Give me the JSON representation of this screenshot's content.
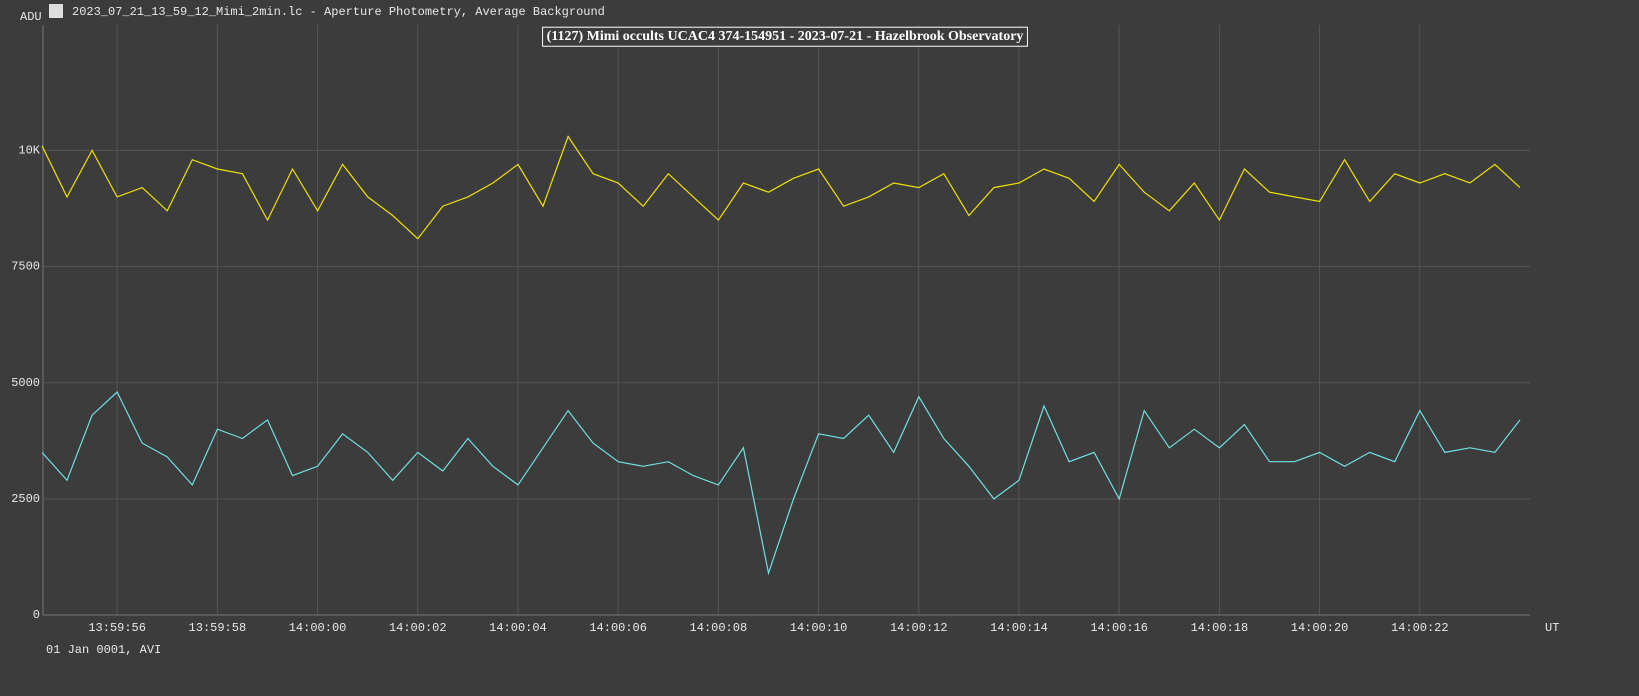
{
  "window_title": "2023_07_21_13_59_12_Mimi_2min.lc - Aperture Photometry, Average Background",
  "chart_data": {
    "type": "line",
    "title": "(1127) Mimi occults UCAC4 374-154951 - 2023-07-21 - Hazelbrook Observatory",
    "y_label": "ADU",
    "x_label": "UT",
    "footer": "01 Jan 0001, AVI",
    "grid": true,
    "xlim": [
      50394.52,
      50424.2
    ],
    "xticks": [
      {
        "value": 50396,
        "label": "13:59:56"
      },
      {
        "value": 50398,
        "label": "13:59:58"
      },
      {
        "value": 50400,
        "label": "14:00:00"
      },
      {
        "value": 50402,
        "label": "14:00:02"
      },
      {
        "value": 50404,
        "label": "14:00:04"
      },
      {
        "value": 50406,
        "label": "14:00:06"
      },
      {
        "value": 50408,
        "label": "14:00:08"
      },
      {
        "value": 50410,
        "label": "14:00:10"
      },
      {
        "value": 50412,
        "label": "14:00:12"
      },
      {
        "value": 50414,
        "label": "14:00:14"
      },
      {
        "value": 50416,
        "label": "14:00:16"
      },
      {
        "value": 50418,
        "label": "14:00:18"
      },
      {
        "value": 50420,
        "label": "14:00:20"
      },
      {
        "value": 50422,
        "label": "14:00:22"
      }
    ],
    "ylim": [
      0,
      12700
    ],
    "yticks": [
      0,
      2500,
      5000,
      7500,
      {
        "value": 10000,
        "label": "10K"
      }
    ],
    "x": [
      50394.5,
      50395,
      50395.5,
      50396,
      50396.5,
      50397,
      50397.5,
      50398,
      50398.5,
      50399,
      50399.5,
      50400,
      50400.5,
      50401,
      50401.5,
      50402,
      50402.5,
      50403,
      50403.5,
      50404,
      50404.5,
      50405,
      50405.5,
      50406,
      50406.5,
      50407,
      50407.5,
      50408,
      50408.5,
      50409,
      50409.5,
      50410,
      50410.5,
      50411,
      50411.5,
      50412,
      50412.5,
      50413,
      50413.5,
      50414,
      50414.5,
      50415,
      50415.5,
      50416,
      50416.5,
      50417,
      50417.5,
      50418,
      50418.5,
      50419,
      50419.5,
      50420,
      50420.5,
      50421,
      50421.5,
      50422,
      50422.5,
      50423,
      50423.5,
      50424
    ],
    "series": [
      {
        "color": "#f0e000",
        "values": [
          10100,
          9000,
          10000,
          9000,
          9200,
          8700,
          9800,
          9600,
          9500,
          8500,
          9600,
          8700,
          9700,
          9000,
          8600,
          8100,
          8800,
          9000,
          9300,
          9700,
          8800,
          10300,
          9500,
          9300,
          8800,
          9500,
          9000,
          8500,
          9300,
          9100,
          9400,
          9600,
          8800,
          9000,
          9300,
          9200,
          9500,
          8600,
          9200,
          9300,
          9600,
          9400,
          8900,
          9700,
          9100,
          8700,
          9300,
          8500,
          9600,
          9100,
          9000,
          8900,
          9800,
          8900,
          9500,
          9300,
          9500,
          9300,
          9700,
          9200
        ]
      },
      {
        "color": "#70e0e0",
        "values": [
          3500,
          2900,
          4300,
          4800,
          3700,
          3400,
          2800,
          4000,
          3800,
          4200,
          3000,
          3200,
          3900,
          3500,
          2900,
          3500,
          3100,
          3800,
          3200,
          2800,
          3600,
          4400,
          3700,
          3300,
          3200,
          3300,
          3000,
          2800,
          3600,
          900,
          2500,
          3900,
          3800,
          4300,
          3500,
          4700,
          3800,
          3200,
          2500,
          2900,
          4500,
          3300,
          3500,
          2500,
          4400,
          3600,
          4000,
          3600,
          4100,
          3300,
          3300,
          3500,
          3200,
          3500,
          3300,
          4400,
          3500,
          3600,
          3500,
          4200
        ]
      }
    ]
  }
}
